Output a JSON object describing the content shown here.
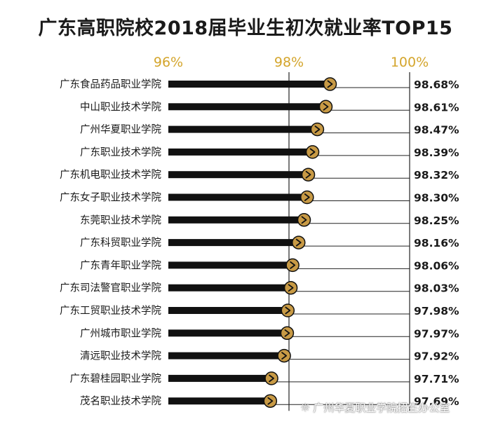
{
  "chart_data": {
    "type": "bar",
    "title": "广东高职院校2018届毕业生初次就业率TOP15",
    "x_ticks": [
      "96%",
      "98%",
      "100%"
    ],
    "xlim": [
      96,
      100
    ],
    "categories": [
      "广东食品药品职业学院",
      "中山职业技术学院",
      "广州华夏职业学院",
      "广东职业技术学院",
      "广东机电职业技术学院",
      "广东女子职业技术学院",
      "东莞职业技术学院",
      "广东科贸职业学院",
      "广东青年职业学院",
      "广东司法警官职业学院",
      "广东工贸职业技术学院",
      "广州城市职业学院",
      "清远职业技术学院",
      "广东碧桂园职业学院",
      "茂名职业技术学院"
    ],
    "values": [
      98.68,
      98.61,
      98.47,
      98.39,
      98.32,
      98.3,
      98.25,
      98.16,
      98.06,
      98.03,
      97.98,
      97.97,
      97.92,
      97.71,
      97.69
    ],
    "value_labels": [
      "98.68%",
      "98.61%",
      "98.47%",
      "98.39%",
      "98.32%",
      "98.30%",
      "98.25%",
      "98.16%",
      "98.06%",
      "98.03%",
      "97.98%",
      "97.97%",
      "97.92%",
      "97.71%",
      "97.69%"
    ],
    "colors": {
      "bar": "#111111",
      "accent": "#d4a52c",
      "marker_fill": "#c89a45",
      "text": "#1a1a1a"
    }
  },
  "watermark": {
    "icon": "wechat-icon",
    "text": "广州华夏职业学院招生办公室"
  }
}
